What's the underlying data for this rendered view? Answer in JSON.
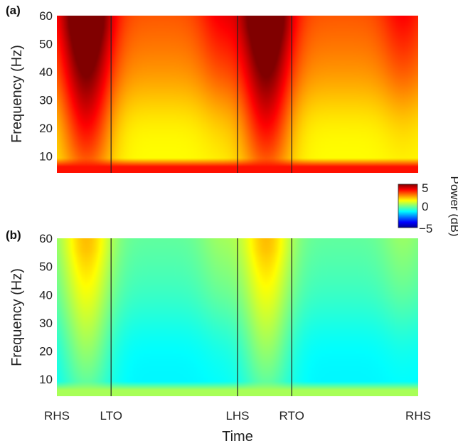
{
  "chart_data": {
    "type": "heatmap",
    "xlabel": "Time",
    "ylabel": "Frequency (Hz)",
    "yticks": [
      10,
      20,
      30,
      40,
      50,
      60
    ],
    "ylim": [
      4,
      60
    ],
    "xticks": [
      {
        "label": "RHS",
        "pos": 0
      },
      {
        "label": "LTO",
        "pos": 0.15
      },
      {
        "label": "LHS",
        "pos": 0.5
      },
      {
        "label": "RTO",
        "pos": 0.65
      },
      {
        "label": "RHS",
        "pos": 1.0
      }
    ],
    "event_lines": [
      0.15,
      0.5,
      0.65
    ],
    "colorbar": {
      "label": "Power (dB)",
      "ticks": [
        "5",
        "0",
        "−5"
      ],
      "range": [
        -5,
        5
      ],
      "colormap": "jet"
    },
    "panels": [
      {
        "label": "(a)",
        "description_values": {
          "stance_peak_db": 4.8,
          "swing_midband_db": 1.3,
          "low_band_db": 3.6
        }
      },
      {
        "label": "(b)",
        "description_values": {
          "stance_peak_db": 0.9,
          "swing_midband_db": -1.3,
          "low_band_db": 0.4
        }
      }
    ]
  }
}
